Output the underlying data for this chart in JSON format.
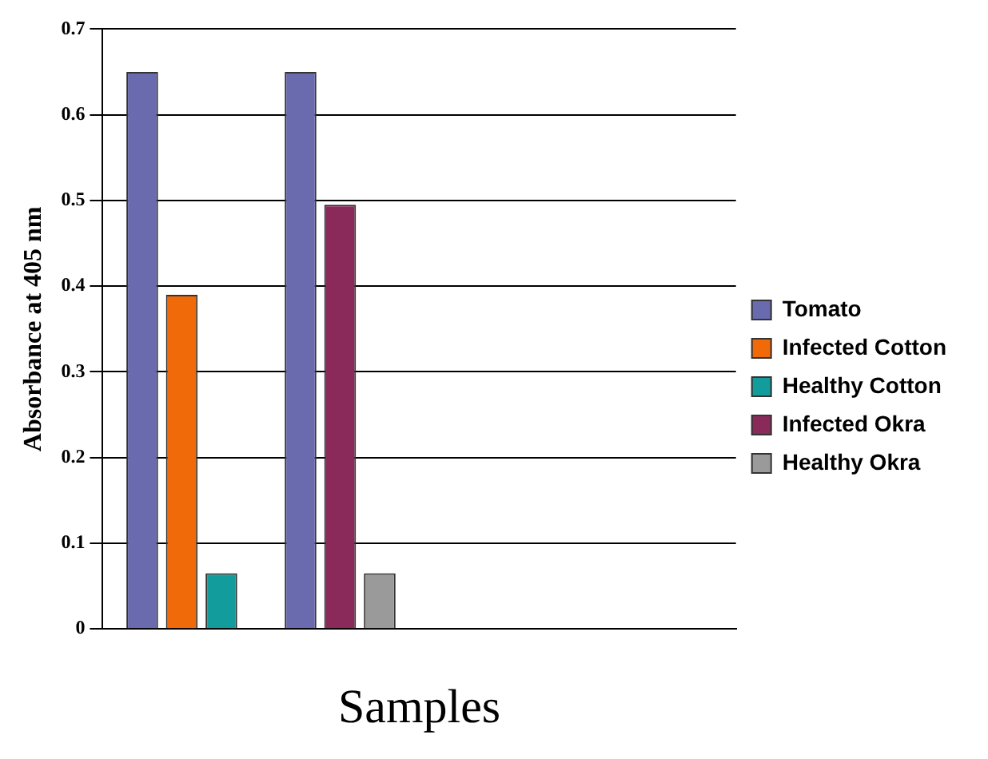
{
  "chart_data": {
    "type": "bar",
    "xlabel": "Samples",
    "ylabel": "Absorbance at 405 nm",
    "categories": [
      null,
      null,
      null,
      null
    ],
    "series": [
      {
        "name": "Tomato",
        "color": "#6a6aae",
        "values": [
          0.65,
          0.65,
          null,
          null
        ]
      },
      {
        "name": "Infected Cotton",
        "color": "#f06a0a",
        "values": [
          0.39,
          null,
          null,
          null
        ]
      },
      {
        "name": "Healthy Cotton",
        "color": "#139c9c",
        "values": [
          0.065,
          null,
          null,
          null
        ]
      },
      {
        "name": "Infected Okra",
        "color": "#8a2a5a",
        "values": [
          null,
          0.495,
          null,
          null
        ]
      },
      {
        "name": "Healthy Okra",
        "color": "#9a9a9a",
        "values": [
          null,
          0.065,
          null,
          null
        ]
      }
    ],
    "ylim": [
      0,
      0.7
    ],
    "yticks": [
      0,
      0.1,
      0.2,
      0.3,
      0.4,
      0.5,
      0.6,
      0.7
    ],
    "grid": "y",
    "legend": "right"
  }
}
